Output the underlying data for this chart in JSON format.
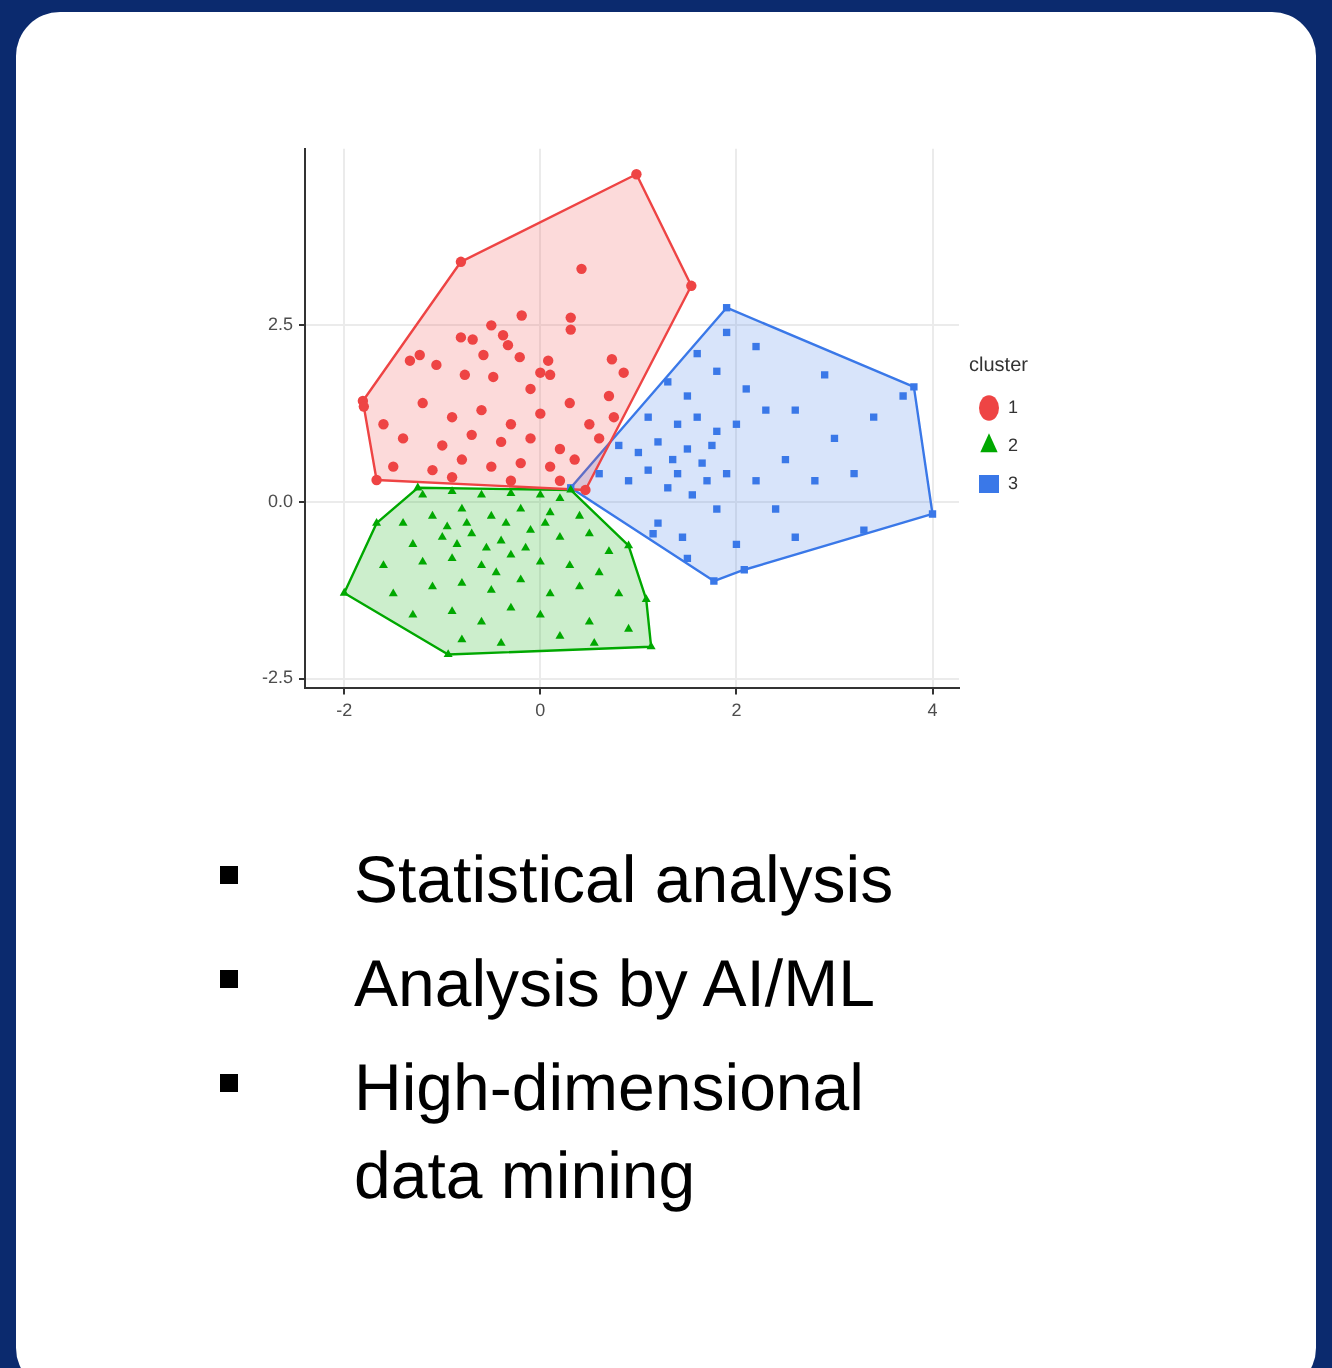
{
  "chart_data": [
    {
      "type": "scatter",
      "xlim": [
        -2.4,
        4.27
      ],
      "ylim": [
        -2.64,
        5.0
      ],
      "xticks": [
        -2,
        0,
        2,
        4
      ],
      "yticks": [
        -2.5,
        {
          "value": 0,
          "label": "0.0"
        },
        2.5
      ],
      "grid": true,
      "legend": "right",
      "legend_title": "cluster",
      "series": [
        {
          "type": "area",
          "color": "#ee4444",
          "x": [
            0.98,
            1.54,
            0.46,
            -1.67,
            -1.81,
            -0.81,
            0.98
          ],
          "values": [
            4.64,
            3.06,
            0.17,
            0.31,
            1.43,
            3.4,
            4.64
          ]
        },
        {
          "type": "area",
          "color": "#00a800",
          "x": [
            -1.25,
            0.31,
            0.9,
            1.08,
            1.13,
            -0.94,
            -2.0,
            -1.67,
            -1.25
          ],
          "values": [
            0.2,
            0.17,
            -0.62,
            -1.38,
            -2.05,
            -2.16,
            -1.29,
            -0.3,
            0.2
          ]
        },
        {
          "type": "area",
          "color": "#3a78e8",
          "x": [
            1.9,
            3.81,
            4.0,
            2.08,
            1.77,
            0.31,
            1.9
          ],
          "values": [
            2.75,
            1.63,
            -0.17,
            -0.96,
            -1.12,
            0.2,
            2.75
          ]
        },
        {
          "name": "1",
          "type": "scatter",
          "color": "#ee4444",
          "marker": "circle",
          "x": [
            0.98,
            1.54,
            -0.81,
            -1.81,
            -1.67,
            0.46,
            0.42,
            -0.19,
            -0.5,
            -0.81,
            -0.69,
            -0.38,
            -0.33,
            -0.58,
            -0.21,
            0.31,
            0.31,
            -1.33,
            -1.23,
            -1.06,
            -0.77,
            -0.48,
            0.08,
            0.1,
            0.0,
            0.73,
            0.85,
            -1.8,
            -1.2,
            -0.9,
            -0.6,
            -0.3,
            0.0,
            0.3,
            0.5,
            -1.4,
            -1.0,
            -0.7,
            -0.4,
            -0.1,
            0.2,
            0.6,
            -1.5,
            -1.1,
            -0.8,
            -0.5,
            -0.2,
            0.1,
            0.35,
            -0.9,
            -0.3,
            0.2,
            0.7,
            0.75,
            -0.1,
            -1.6
          ],
          "values": [
            4.64,
            3.06,
            3.4,
            1.43,
            0.31,
            0.17,
            3.3,
            2.64,
            2.5,
            2.33,
            2.3,
            2.36,
            2.22,
            2.08,
            2.05,
            2.61,
            2.44,
            2.0,
            2.08,
            1.94,
            1.8,
            1.77,
            2.0,
            1.8,
            1.83,
            2.02,
            1.83,
            1.35,
            1.4,
            1.2,
            1.3,
            1.1,
            1.25,
            1.4,
            1.1,
            0.9,
            0.8,
            0.95,
            0.85,
            0.9,
            0.75,
            0.9,
            0.5,
            0.45,
            0.6,
            0.5,
            0.55,
            0.5,
            0.6,
            0.35,
            0.3,
            0.3,
            1.5,
            1.2,
            1.6,
            1.1
          ]
        },
        {
          "name": "2",
          "type": "scatter",
          "color": "#00a800",
          "marker": "triangle",
          "x": [
            -1.25,
            0.31,
            0.9,
            1.08,
            1.13,
            -0.94,
            -2.0,
            -1.67,
            -1.2,
            -0.9,
            -0.6,
            -0.3,
            0.0,
            0.2,
            -1.4,
            -1.1,
            -0.8,
            -0.5,
            -0.2,
            0.1,
            0.4,
            -1.3,
            -1.0,
            -0.7,
            -0.4,
            -0.1,
            0.2,
            0.5,
            0.7,
            -1.6,
            -1.2,
            -0.9,
            -0.6,
            -0.3,
            0.0,
            0.3,
            0.6,
            -1.5,
            -1.1,
            -0.8,
            -0.5,
            -0.2,
            0.1,
            0.4,
            0.8,
            -1.3,
            -0.9,
            -0.6,
            -0.3,
            0.0,
            0.5,
            0.9,
            -0.8,
            -0.4,
            0.2,
            0.55,
            -0.75,
            -0.55,
            -0.35,
            -0.15,
            -0.95,
            0.05,
            -0.45,
            -0.85
          ],
          "values": [
            0.2,
            0.17,
            -0.62,
            -1.38,
            -2.05,
            -2.16,
            -1.29,
            -0.3,
            0.1,
            0.15,
            0.1,
            0.12,
            0.1,
            0.05,
            -0.3,
            -0.2,
            -0.1,
            -0.2,
            -0.1,
            -0.15,
            -0.2,
            -0.6,
            -0.5,
            -0.45,
            -0.55,
            -0.4,
            -0.5,
            -0.45,
            -0.7,
            -0.9,
            -0.85,
            -0.8,
            -0.9,
            -0.75,
            -0.85,
            -0.9,
            -1.0,
            -1.3,
            -1.2,
            -1.15,
            -1.25,
            -1.1,
            -1.3,
            -1.2,
            -1.3,
            -1.6,
            -1.55,
            -1.7,
            -1.5,
            -1.6,
            -1.7,
            -1.8,
            -1.95,
            -2.0,
            -1.9,
            -2.0,
            -0.3,
            -0.65,
            -0.3,
            -0.65,
            -0.35,
            -0.3,
            -1.0,
            -0.6
          ]
        },
        {
          "name": "3",
          "type": "scatter",
          "color": "#3a78e8",
          "marker": "square",
          "x": [
            1.9,
            3.81,
            4.0,
            2.08,
            1.77,
            0.31,
            1.9,
            1.6,
            1.8,
            2.1,
            1.3,
            1.5,
            2.3,
            1.1,
            1.4,
            1.6,
            1.8,
            2.0,
            2.6,
            2.5,
            3.0,
            3.4,
            3.7,
            0.8,
            1.0,
            1.2,
            1.35,
            1.5,
            1.65,
            1.75,
            1.9,
            2.2,
            2.8,
            3.2,
            0.6,
            0.9,
            1.1,
            1.3,
            1.55,
            1.8,
            2.4,
            3.3,
            1.2,
            1.45,
            1.15,
            1.5,
            2.0,
            2.6,
            2.2,
            2.9,
            1.4,
            1.7
          ],
          "values": [
            2.75,
            1.63,
            -0.17,
            -0.96,
            -1.12,
            0.2,
            2.4,
            2.1,
            1.85,
            1.6,
            1.7,
            1.5,
            1.3,
            1.2,
            1.1,
            1.2,
            1.0,
            1.1,
            1.3,
            0.6,
            0.9,
            1.2,
            1.5,
            0.8,
            0.7,
            0.85,
            0.6,
            0.75,
            0.55,
            0.8,
            0.4,
            0.3,
            0.3,
            0.4,
            0.4,
            0.3,
            0.45,
            0.2,
            0.1,
            -0.1,
            -0.1,
            -0.4,
            -0.3,
            -0.5,
            -0.45,
            -0.8,
            -0.6,
            -0.5,
            2.2,
            1.8,
            0.4,
            0.3
          ]
        }
      ]
    },
    {
      "type": "other",
      "annotations": [
        "Statistical analysis",
        "Analysis by AI/ML",
        "High-dimensional data mining"
      ]
    }
  ]
}
